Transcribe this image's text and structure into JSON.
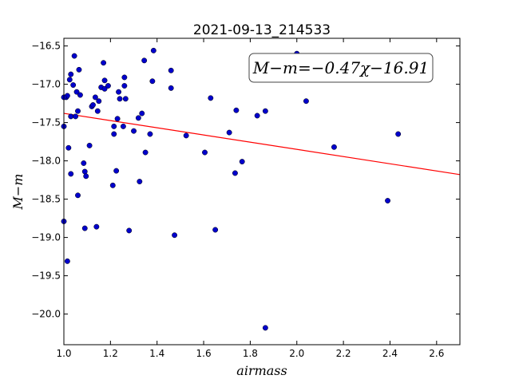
{
  "chart_data": {
    "type": "scatter",
    "title": "2021-09-13_214533",
    "xlabel": "airmass",
    "ylabel": "M−m",
    "xlim": [
      1.0,
      2.7
    ],
    "ylim": [
      -20.4,
      -16.4
    ],
    "y_inverted": true,
    "grid": false,
    "x_ticks": [
      1.0,
      1.2,
      1.4,
      1.6,
      1.8,
      2.0,
      2.2,
      2.4,
      2.6
    ],
    "x_tick_labels": [
      "1.0",
      "1.2",
      "1.4",
      "1.6",
      "1.8",
      "2.0",
      "2.2",
      "2.4",
      "2.6"
    ],
    "y_ticks": [
      -16.5,
      -17.0,
      -17.5,
      -18.0,
      -18.5,
      -19.0,
      -19.5,
      -20.0
    ],
    "y_tick_labels": [
      "−16.5",
      "−17.0",
      "−17.5",
      "−18.0",
      "−18.5",
      "−19.0",
      "−19.5",
      "−20.0"
    ],
    "annotation": {
      "text": "M−m=−0.47χ−16.91",
      "position": "top-right"
    },
    "fit_line": {
      "slope": -0.47,
      "intercept": -16.91,
      "color": "#ff0000",
      "x_range": [
        1.0,
        2.7
      ]
    },
    "point_color": "#0000cc",
    "points": [
      [
        1.0,
        -17.55
      ],
      [
        1.0,
        -18.79
      ],
      [
        1.01,
        -17.17
      ],
      [
        1.015,
        -17.15
      ],
      [
        1.015,
        -19.31
      ],
      [
        1.02,
        -17.83
      ],
      [
        1.025,
        -16.94
      ],
      [
        1.03,
        -16.87
      ],
      [
        1.03,
        -17.42
      ],
      [
        1.03,
        -18.17
      ],
      [
        1.04,
        -17.01
      ],
      [
        1.045,
        -16.63
      ],
      [
        1.05,
        -17.42
      ],
      [
        1.055,
        -17.1
      ],
      [
        1.06,
        -17.35
      ],
      [
        1.06,
        -18.45
      ],
      [
        1.065,
        -16.81
      ],
      [
        1.07,
        -17.14
      ],
      [
        1.085,
        -18.03
      ],
      [
        1.09,
        -18.14
      ],
      [
        1.09,
        -18.88
      ],
      [
        1.095,
        -18.2
      ],
      [
        1.11,
        -17.8
      ],
      [
        1.12,
        -17.29
      ],
      [
        1.125,
        -17.27
      ],
      [
        1.135,
        -17.17
      ],
      [
        1.14,
        -18.86
      ],
      [
        1.145,
        -17.35
      ],
      [
        1.15,
        -17.22
      ],
      [
        1.16,
        -17.04
      ],
      [
        1.17,
        -16.72
      ],
      [
        1.175,
        -16.95
      ],
      [
        1.175,
        -17.06
      ],
      [
        1.19,
        -17.02
      ],
      [
        1.21,
        -18.32
      ],
      [
        1.215,
        -17.55
      ],
      [
        1.215,
        -17.65
      ],
      [
        1.225,
        -18.13
      ],
      [
        1.23,
        -17.45
      ],
      [
        1.235,
        -17.1
      ],
      [
        1.24,
        -17.19
      ],
      [
        1.255,
        -17.55
      ],
      [
        1.26,
        -17.02
      ],
      [
        1.26,
        -16.91
      ],
      [
        1.265,
        -17.19
      ],
      [
        1.28,
        -18.91
      ],
      [
        1.3,
        -17.61
      ],
      [
        1.32,
        -17.44
      ],
      [
        1.325,
        -18.27
      ],
      [
        1.335,
        -17.38
      ],
      [
        1.345,
        -16.69
      ],
      [
        1.35,
        -17.89
      ],
      [
        1.37,
        -17.65
      ],
      [
        1.38,
        -16.96
      ],
      [
        1.385,
        -16.56
      ],
      [
        1.46,
        -16.82
      ],
      [
        1.46,
        -17.05
      ],
      [
        1.475,
        -18.97
      ],
      [
        1.525,
        -17.67
      ],
      [
        1.605,
        -17.89
      ],
      [
        1.63,
        -17.18
      ],
      [
        1.65,
        -18.9
      ],
      [
        1.71,
        -17.63
      ],
      [
        1.735,
        -18.16
      ],
      [
        1.74,
        -17.34
      ],
      [
        1.765,
        -18.01
      ],
      [
        1.83,
        -17.41
      ],
      [
        1.865,
        -17.35
      ],
      [
        1.865,
        -20.18
      ],
      [
        2.0,
        -16.6
      ],
      [
        2.04,
        -17.22
      ],
      [
        2.16,
        -17.82
      ],
      [
        2.39,
        -18.52
      ],
      [
        2.435,
        -17.65
      ],
      [
        1.0,
        -17.17
      ]
    ]
  }
}
